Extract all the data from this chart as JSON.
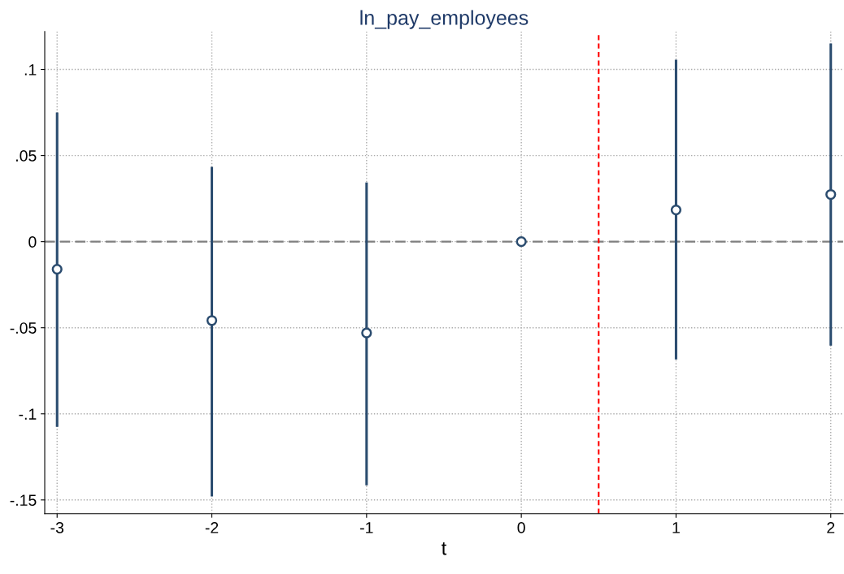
{
  "chart_data": {
    "type": "scatter",
    "title": "ln_pay_employees",
    "xlabel": "t",
    "x": [
      -3,
      -2,
      -1,
      0,
      1,
      2
    ],
    "series": [
      {
        "color": "#2b4c6f",
        "values": [
          -0.016,
          -0.0458,
          -0.053,
          0,
          0.0184,
          0.0274
        ],
        "errors": [
          [
            -0.1075,
            0.075
          ],
          [
            -0.148,
            0.0434
          ],
          [
            -0.1415,
            0.0344
          ],
          null,
          [
            -0.0684,
            0.1057
          ],
          [
            -0.0604,
            0.1151
          ]
        ]
      }
    ],
    "xlim": [
      -3.08,
      2.08
    ],
    "ylim": [
      -0.158,
      0.122
    ],
    "xticks": [
      -3,
      -2,
      -1,
      0,
      1,
      2
    ],
    "yticks": [
      {
        "value": -0.15,
        "label": "-.15"
      },
      {
        "value": -0.1,
        "label": "-.1"
      },
      {
        "value": -0.05,
        "label": "-.05"
      },
      {
        "value": 0,
        "label": "0"
      },
      {
        "value": 0.05,
        "label": ".05"
      },
      {
        "value": 0.1,
        "label": ".1"
      }
    ],
    "ref_lines": [
      {
        "axis": "y",
        "value": 0,
        "color": "#7f7f7f",
        "line_style": "dashed"
      },
      {
        "axis": "x",
        "value": 0.5,
        "color": "#ff0000",
        "line_style": "dashed"
      }
    ],
    "grid": true,
    "marker": "circle",
    "legend": false
  }
}
